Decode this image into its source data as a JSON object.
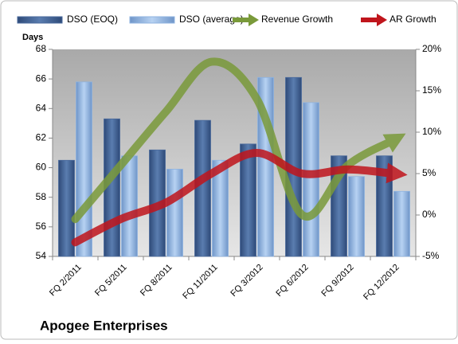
{
  "chart_data": {
    "type": "bar_line",
    "title": "Apogee Enterprises",
    "y_label": "Days",
    "categories": [
      "FQ 2/2011",
      "FQ 5/2011",
      "FQ 8/2011",
      "FQ 11/2011",
      "FQ 3/2012",
      "FQ 6/2012",
      "FQ 9/2012",
      "FQ 12/2012"
    ],
    "series": [
      {
        "name": "DSO (EOQ)",
        "type": "bar",
        "color": "#4a6a9c",
        "values": [
          60.5,
          63.3,
          61.2,
          63.2,
          61.6,
          66.1,
          60.8,
          60.8
        ]
      },
      {
        "name": "DSO (average)",
        "type": "bar",
        "color": "#8fb3e0",
        "values": [
          65.8,
          60.8,
          59.9,
          60.5,
          66.1,
          64.4,
          59.4,
          58.4
        ]
      },
      {
        "name": "Revenue Growth",
        "type": "line",
        "axis": "y2",
        "color": "#7a9a3a",
        "values": [
          -0.5,
          6,
          12.5,
          18.5,
          14,
          0,
          6,
          9
        ]
      },
      {
        "name": "AR Growth",
        "type": "line",
        "axis": "y2",
        "color": "#c0151c",
        "values": [
          -3.3,
          -0.5,
          1.5,
          5,
          7.5,
          5,
          5.5,
          5
        ]
      }
    ],
    "ylim": [
      54,
      68
    ],
    "yticks": [
      54,
      56,
      58,
      60,
      62,
      64,
      66,
      68
    ],
    "y2lim": [
      -5,
      20
    ],
    "y2ticks": [
      {
        "value": -5,
        "label": "-5%"
      },
      {
        "value": 0,
        "label": "0%"
      },
      {
        "value": 5,
        "label": "5%"
      },
      {
        "value": 10,
        "label": "10%"
      },
      {
        "value": 15,
        "label": "15%"
      },
      {
        "value": 20,
        "label": "20%"
      }
    ],
    "legend": "top"
  }
}
